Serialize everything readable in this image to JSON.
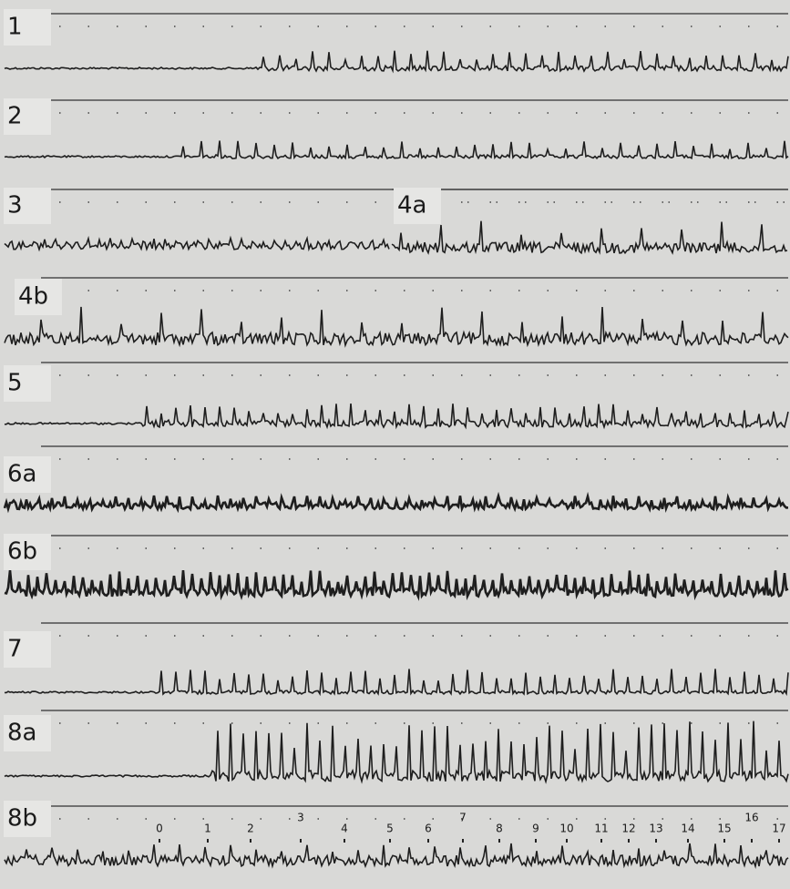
{
  "panels": [
    {
      "label": "1"
    },
    {
      "label": "2"
    },
    {
      "label": "3"
    },
    {
      "label": "4a"
    },
    {
      "label": "4b"
    },
    {
      "label": "5"
    },
    {
      "label": "6a"
    },
    {
      "label": "6b"
    },
    {
      "label": "7"
    },
    {
      "label": "8a"
    },
    {
      "label": "8b"
    }
  ],
  "time_markers": [
    "0",
    "1",
    "2",
    "3",
    "4",
    "5",
    "6",
    "7",
    "8",
    "9",
    "10",
    "11",
    "12",
    "13",
    "14",
    "15",
    "16",
    "17"
  ]
}
